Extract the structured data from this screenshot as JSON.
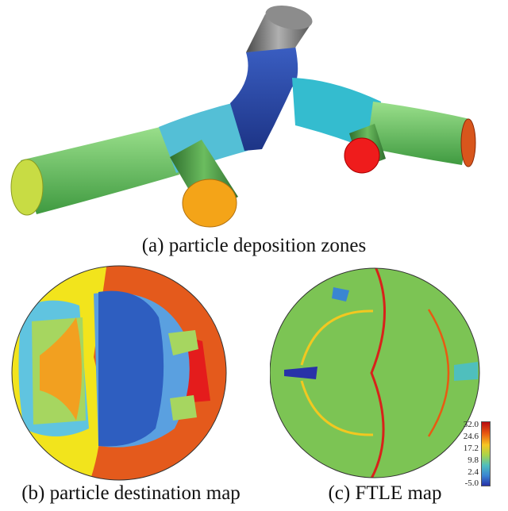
{
  "captions": {
    "a": "(a) particle deposition zones",
    "b": "(b) particle destination map",
    "c": "(c) FTLE map"
  },
  "colorbar": {
    "ticks": [
      "32.0",
      "24.6",
      "17.2",
      "9.8",
      "2.4",
      "-5.0"
    ]
  },
  "colors": {
    "trunk_top": "#777777",
    "trunk_mid": "#2f4fb0",
    "left_branch": "#3fa9d6",
    "left_tube": "#6ccf6a",
    "left_end": "#c8dc44",
    "down_tube": "#4f9a48",
    "down_end": "#f4a418",
    "right_branch": "#31bfd2",
    "right_tube": "#62cc66",
    "right_end": "#d8561c",
    "right_small_tube": "#4f9a48",
    "right_small_end": "#ef1c1c",
    "destination_yellow": "#f2e41c",
    "destination_orange": "#f2a020",
    "destination_red": "#e43018",
    "destination_blue": "#3568c8",
    "destination_cyan": "#60c4e0",
    "destination_green": "#a6d660",
    "ftle_base": "#7cc454",
    "ftle_ridge": "#d8221a"
  }
}
